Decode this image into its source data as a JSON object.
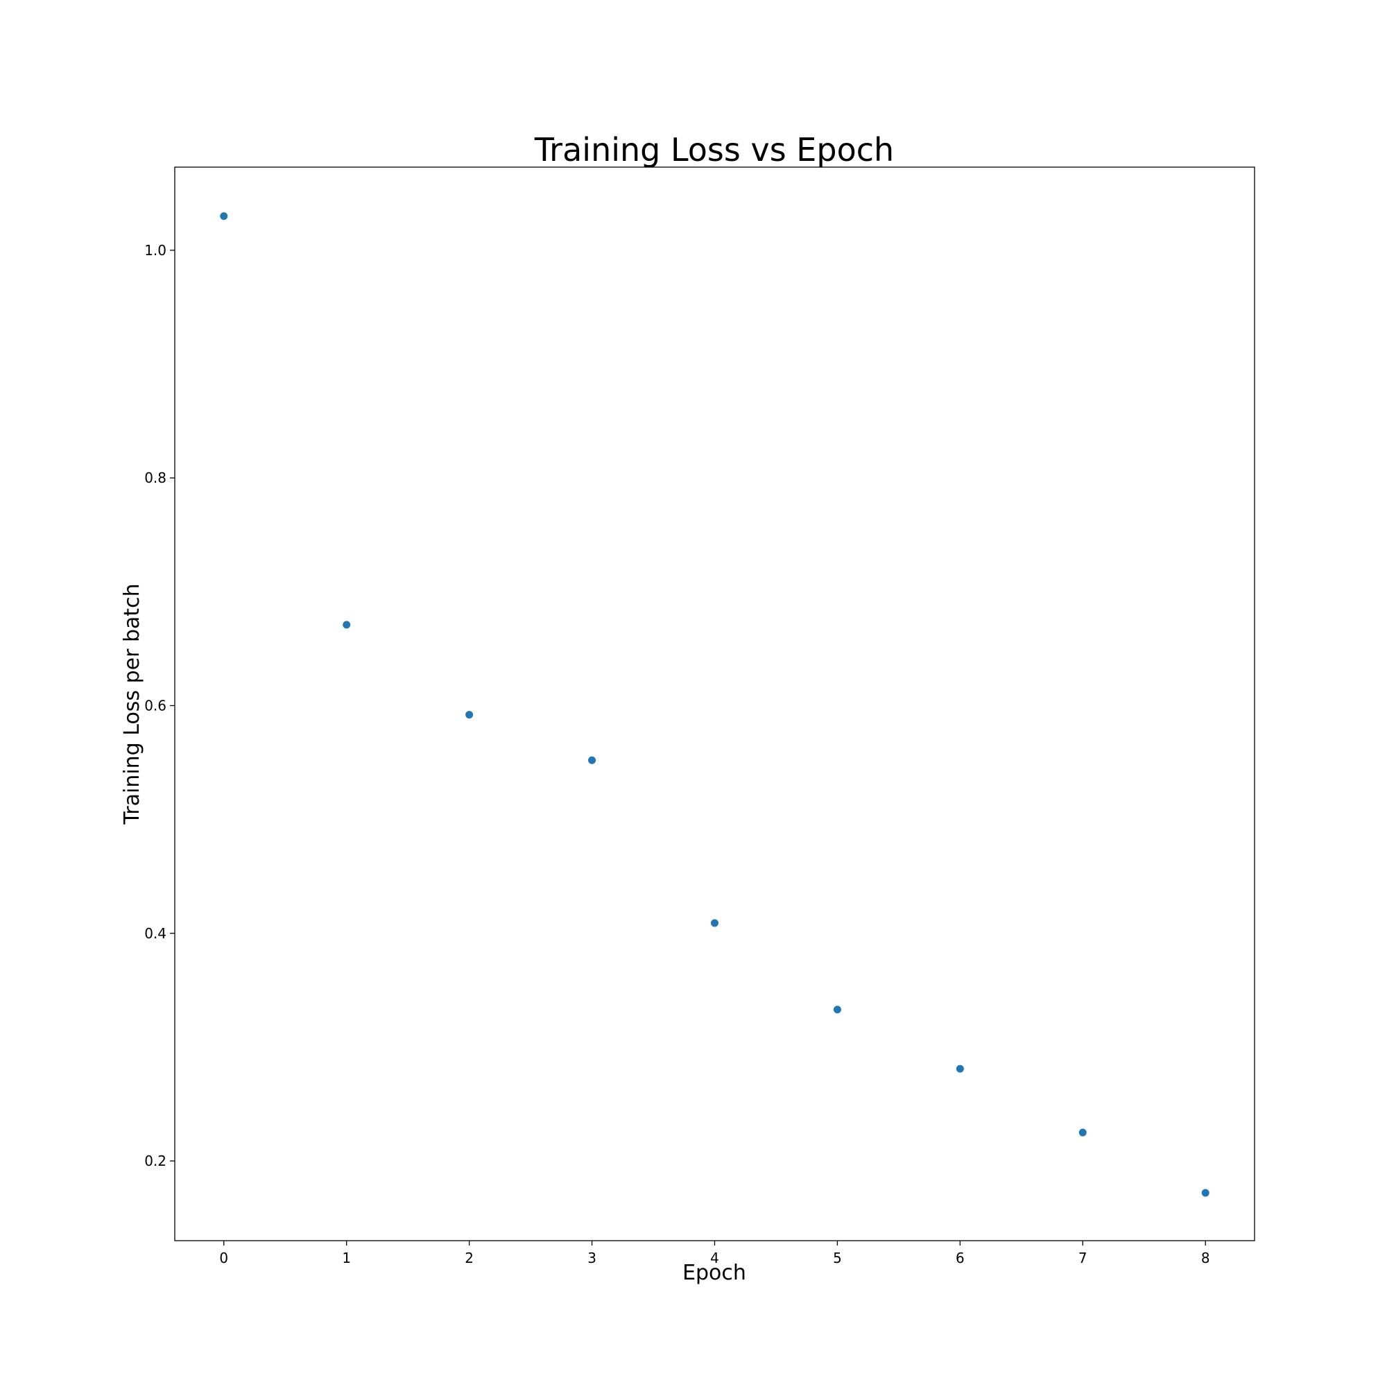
{
  "chart_data": {
    "type": "scatter",
    "title": "Training Loss vs Epoch",
    "xlabel": "Epoch",
    "ylabel": "Training Loss per batch",
    "x": [
      0,
      1,
      2,
      3,
      4,
      5,
      6,
      7,
      8
    ],
    "y": [
      1.03,
      0.671,
      0.592,
      0.552,
      0.409,
      0.333,
      0.281,
      0.225,
      0.172
    ],
    "xlim": [
      -0.4,
      8.4
    ],
    "ylim": [
      0.13,
      1.073
    ],
    "xticks": [
      0,
      1,
      2,
      3,
      4,
      5,
      6,
      7,
      8
    ],
    "xtick_labels": [
      "0",
      "1",
      "2",
      "3",
      "4",
      "5",
      "6",
      "7",
      "8"
    ],
    "yticks": [
      0.2,
      0.4,
      0.6,
      0.8,
      1.0
    ],
    "ytick_labels": [
      "0.2",
      "0.4",
      "0.6",
      "0.8",
      "1.0"
    ],
    "grid": false,
    "legend": false,
    "marker_color": "#1f77b4"
  }
}
